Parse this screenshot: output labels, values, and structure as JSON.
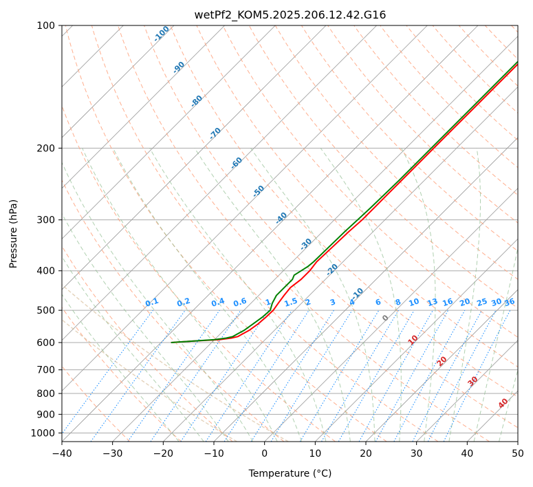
{
  "chart_data": {
    "type": "line",
    "title": "wetPf2_KOM5.2025.206.12.42.G16",
    "xlabel": "Temperature (°C)",
    "ylabel": "Pressure (hPa)",
    "xlim": [
      -40,
      50
    ],
    "ylim": [
      1050,
      100
    ],
    "y_scale": "log",
    "grid": true,
    "x_ticks": [
      "−40",
      "−30",
      "−20",
      "−10",
      "0",
      "10",
      "20",
      "30",
      "40",
      "50"
    ],
    "y_ticks": [
      "100",
      "200",
      "300",
      "400",
      "500",
      "600",
      "700",
      "800",
      "900",
      "1000"
    ],
    "series": [
      {
        "color": "#ff0000",
        "pressure": [
          600,
          595,
          590,
          585,
          580,
          570,
          560,
          540,
          520,
          500,
          480,
          460,
          440,
          420,
          400,
          380,
          350,
          320,
          300,
          280,
          260,
          240,
          220,
          200,
          180,
          160,
          140,
          120,
          100
        ],
        "temperature": [
          -38,
          -34,
          -29,
          -27,
          -26,
          -25.5,
          -25,
          -24.5,
          -24.3,
          -24.2,
          -24.6,
          -25,
          -25.3,
          -24.8,
          -24.8,
          -25.2,
          -25,
          -24.8,
          -24.5,
          -24.5,
          -24.5,
          -24.5,
          -24.5,
          -24.5,
          -24.5,
          -24.5,
          -24.5,
          -24.5,
          -24.5
        ]
      },
      {
        "color": "#008000",
        "pressure": [
          600,
          595,
          590,
          585,
          580,
          570,
          560,
          540,
          520,
          500,
          480,
          460,
          440,
          420,
          410,
          400,
          390,
          380,
          350,
          320,
          300,
          280,
          260,
          240,
          220,
          200,
          180,
          160,
          140,
          120,
          100
        ],
        "temperature": [
          -38,
          -34,
          -30,
          -28,
          -27,
          -26.5,
          -26,
          -25.5,
          -25,
          -24.8,
          -25.8,
          -26.5,
          -26.5,
          -26.5,
          -27,
          -26.5,
          -26,
          -25.8,
          -25.7,
          -25.6,
          -25.4,
          -25.2,
          -25.1,
          -25,
          -25,
          -25,
          -25,
          -25,
          -25,
          -25,
          -25
        ]
      }
    ],
    "dry_adiabat_labels": [
      "-100",
      "-90",
      "-80",
      "-70",
      "-60",
      "-50",
      "-40",
      "-30",
      "-20",
      "-10"
    ],
    "moist_adiabat_labels": [
      "0",
      "10",
      "20",
      "30",
      "40"
    ],
    "mixing_ratio_labels": [
      "0.1",
      "0.2",
      "0.4",
      "0.6",
      "1",
      "1.5",
      "2",
      "3",
      "4",
      "6",
      "8",
      "10",
      "13",
      "16",
      "20",
      "25",
      "30",
      "36"
    ],
    "colors": {
      "dry_adiabat": "#ffa07a",
      "moist_adiabat": "#8fbc8f",
      "mixing_ratio": "#1e90ff",
      "dry_label": "#1f77b4",
      "moist_label": "#d62728",
      "isotherm": "#999999",
      "special_adiabat": "#d2b48c"
    }
  }
}
